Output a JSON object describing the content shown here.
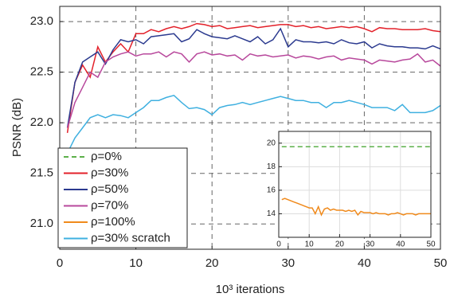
{
  "chart_data": [
    {
      "type": "line",
      "xlabel": "10³ iterations",
      "ylabel": "PSNR (dB)",
      "xlim": [
        0,
        50
      ],
      "ylim": [
        20.75,
        23.15
      ],
      "xticks": [
        0,
        10,
        20,
        30,
        40,
        50
      ],
      "yticks": [
        {
          "value": 21,
          "label": "21.0"
        },
        21.5,
        {
          "value": 22,
          "label": "22.0"
        },
        22.5,
        {
          "value": 23,
          "label": "23.0"
        }
      ],
      "grid": true,
      "legend": "lower left",
      "x": [
        1,
        2,
        3,
        4,
        5,
        6,
        7,
        8,
        9,
        10,
        11,
        12,
        13,
        14,
        15,
        16,
        17,
        18,
        19,
        20,
        21,
        22,
        23,
        24,
        25,
        26,
        27,
        28,
        29,
        30,
        31,
        32,
        33,
        34,
        35,
        36,
        37,
        38,
        39,
        40,
        41,
        42,
        43,
        44,
        45,
        46,
        47,
        48,
        49,
        50
      ],
      "series": [
        {
          "name": "ρ=30%",
          "color": "#e3212a",
          "values": [
            21.9,
            22.4,
            22.57,
            22.45,
            22.75,
            22.6,
            22.7,
            22.78,
            22.7,
            22.88,
            22.88,
            22.92,
            22.9,
            22.93,
            22.95,
            22.93,
            22.95,
            22.98,
            22.97,
            22.95,
            22.96,
            22.93,
            22.94,
            22.95,
            22.96,
            22.94,
            22.95,
            22.96,
            22.97,
            22.97,
            22.95,
            22.96,
            22.94,
            22.95,
            22.93,
            22.94,
            22.95,
            22.94,
            22.95,
            22.93,
            22.9,
            22.94,
            22.93,
            22.93,
            22.92,
            22.92,
            22.92,
            22.93,
            22.91,
            22.9
          ]
        },
        {
          "name": "ρ=50%",
          "color": "#2b3a8f",
          "values": [
            21.95,
            22.4,
            22.6,
            22.65,
            22.7,
            22.58,
            22.72,
            22.82,
            22.8,
            22.82,
            22.78,
            22.85,
            22.86,
            22.87,
            22.88,
            22.8,
            22.83,
            22.92,
            22.88,
            22.85,
            22.84,
            22.83,
            22.86,
            22.83,
            22.8,
            22.85,
            22.78,
            22.82,
            22.93,
            22.75,
            22.82,
            22.8,
            22.8,
            22.79,
            22.8,
            22.78,
            22.82,
            22.79,
            22.78,
            22.8,
            22.74,
            22.78,
            22.76,
            22.75,
            22.75,
            22.74,
            22.74,
            22.73,
            22.76,
            22.73
          ]
        },
        {
          "name": "ρ=70%",
          "color": "#b8489c",
          "values": [
            21.95,
            22.2,
            22.35,
            22.5,
            22.45,
            22.6,
            22.65,
            22.68,
            22.7,
            22.66,
            22.68,
            22.68,
            22.7,
            22.65,
            22.7,
            22.68,
            22.6,
            22.68,
            22.7,
            22.67,
            22.68,
            22.66,
            22.67,
            22.62,
            22.68,
            22.66,
            22.67,
            22.65,
            22.66,
            22.67,
            22.64,
            22.66,
            22.65,
            22.63,
            22.65,
            22.66,
            22.62,
            22.64,
            22.63,
            22.62,
            22.58,
            22.62,
            22.61,
            22.6,
            22.62,
            22.63,
            22.68,
            22.6,
            22.62,
            22.56
          ]
        },
        {
          "name": "ρ=30% scratch",
          "color": "#3fb0e0",
          "values": [
            21.7,
            21.85,
            21.95,
            22.05,
            22.08,
            22.05,
            22.08,
            22.07,
            22.05,
            22.1,
            22.15,
            22.22,
            22.22,
            22.25,
            22.27,
            22.2,
            22.14,
            22.15,
            22.13,
            22.08,
            22.15,
            22.17,
            22.18,
            22.2,
            22.18,
            22.2,
            22.22,
            22.24,
            22.26,
            22.24,
            22.22,
            22.22,
            22.2,
            22.2,
            22.15,
            22.2,
            22.2,
            22.22,
            22.2,
            22.18,
            22.15,
            22.15,
            22.15,
            22.12,
            22.18,
            22.1,
            22.1,
            22.1,
            22.12,
            22.17
          ]
        }
      ]
    },
    {
      "type": "line",
      "xlim": [
        0,
        50
      ],
      "ylim": [
        12,
        21
      ],
      "xticks": [
        0,
        10,
        20,
        30,
        40,
        50
      ],
      "yticks": [
        14,
        16,
        18,
        20
      ],
      "grid": true,
      "x": [
        1,
        2,
        3,
        4,
        5,
        6,
        7,
        8,
        9,
        10,
        11,
        12,
        13,
        14,
        15,
        16,
        17,
        18,
        19,
        20,
        21,
        22,
        23,
        24,
        25,
        26,
        27,
        28,
        29,
        30,
        31,
        32,
        33,
        34,
        35,
        36,
        37,
        38,
        39,
        40,
        41,
        42,
        43,
        44,
        45,
        46,
        47,
        48,
        49,
        50
      ],
      "series": [
        {
          "name": "ρ=0%",
          "color": "#5cb04a",
          "dashed": true,
          "values": [
            19.7,
            19.7,
            19.7,
            19.7,
            19.7,
            19.7,
            19.7,
            19.7,
            19.7,
            19.7,
            19.7,
            19.7,
            19.7,
            19.7,
            19.7,
            19.7,
            19.7,
            19.7,
            19.7,
            19.7,
            19.7,
            19.7,
            19.7,
            19.7,
            19.7,
            19.7,
            19.7,
            19.7,
            19.7,
            19.7,
            19.7,
            19.7,
            19.7,
            19.7,
            19.7,
            19.7,
            19.7,
            19.7,
            19.7,
            19.7,
            19.7,
            19.7,
            19.7,
            19.7,
            19.7,
            19.7,
            19.7,
            19.7,
            19.7,
            19.7
          ]
        },
        {
          "name": "ρ=100%",
          "color": "#f08a1c",
          "values": [
            15.2,
            15.3,
            15.2,
            15.1,
            15,
            14.9,
            14.8,
            14.7,
            14.6,
            14.5,
            14.5,
            14.0,
            14.6,
            13.9,
            14.4,
            14.5,
            14.3,
            14.4,
            14.3,
            14.3,
            14.3,
            14.2,
            14.3,
            14.2,
            14.3,
            13.9,
            14.2,
            14.1,
            14.1,
            14.1,
            14.0,
            14.1,
            14.0,
            14.0,
            14.0,
            13.9,
            14.0,
            14.0,
            14.1,
            14.0,
            13.9,
            14.0,
            14.0,
            14.0,
            13.9,
            14.0,
            14.0,
            14.0,
            14.0,
            14.0
          ]
        }
      ]
    }
  ]
}
